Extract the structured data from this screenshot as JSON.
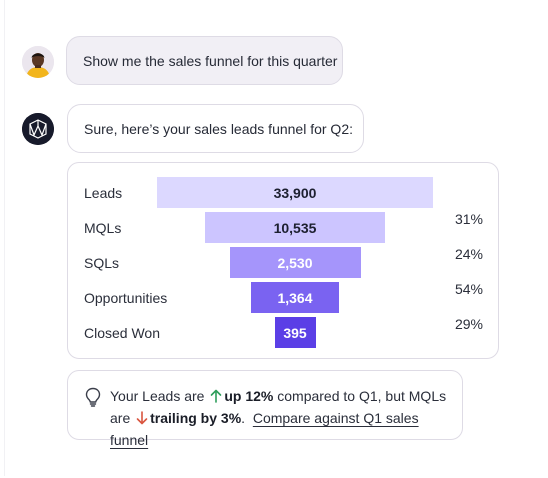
{
  "conversation": {
    "user_message": "Show me the sales funnel for this quarter",
    "bot_message": "Sure, here’s your sales leads funnel for Q2:"
  },
  "funnel": {
    "stages": [
      {
        "label": "Leads",
        "value_label": "33,900",
        "value": 33900,
        "pct": ""
      },
      {
        "label": "MQLs",
        "value_label": "10,535",
        "value": 10535,
        "pct": "31%"
      },
      {
        "label": "SQLs",
        "value_label": "2,530",
        "value": 2530,
        "pct": "24%"
      },
      {
        "label": "Opportunities",
        "value_label": "1,364",
        "value": 1364,
        "pct": "54%"
      },
      {
        "label": "Closed Won",
        "value_label": "395",
        "value": 395,
        "pct": "29%"
      }
    ],
    "colors": [
      "#dcd8ff",
      "#ccc5ff",
      "#a595fb",
      "#7a63f1",
      "#5b3fe6"
    ],
    "text_colors": [
      "#1d2030",
      "#1d2030",
      "#ffffff",
      "#ffffff",
      "#ffffff"
    ]
  },
  "insight": {
    "icon": "lightbulb-icon",
    "part1": "Your Leads are",
    "leads_trend": "up 12%",
    "part2": "compared to Q1, but MQLs are",
    "mqls_trend": "trailing by 3%",
    "part3": ".",
    "link_text": "Compare against Q1 sales funnel",
    "up_color": "#2e9e5b",
    "down_color": "#d9553f"
  }
}
